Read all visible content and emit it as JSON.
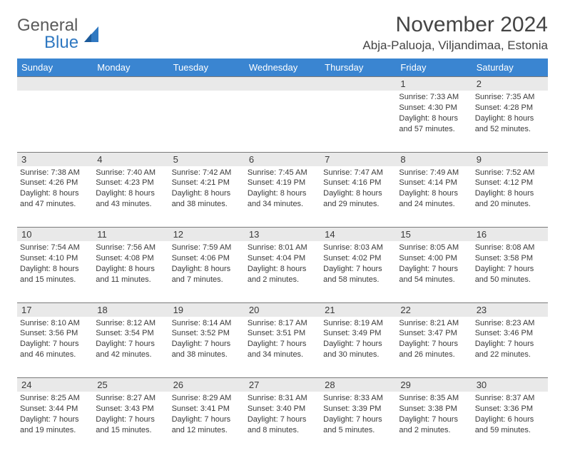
{
  "brand": {
    "name1": "General",
    "name2": "Blue"
  },
  "title": "November 2024",
  "location": "Abja-Paluoja, Viljandimaa, Estonia",
  "colors": {
    "header_bg": "#3a85d1",
    "header_text": "#ffffff",
    "daynum_bg": "#e9e9e9",
    "daynum_border": "#7a7a7a",
    "text": "#3a3a3a",
    "brand_gray": "#5a5a5a",
    "brand_blue": "#2f78c1",
    "page_bg": "#ffffff"
  },
  "weekdays": [
    "Sunday",
    "Monday",
    "Tuesday",
    "Wednesday",
    "Thursday",
    "Friday",
    "Saturday"
  ],
  "weeks": [
    [
      null,
      null,
      null,
      null,
      null,
      {
        "n": "1",
        "sr": "Sunrise: 7:33 AM",
        "ss": "Sunset: 4:30 PM",
        "dl1": "Daylight: 8 hours",
        "dl2": "and 57 minutes."
      },
      {
        "n": "2",
        "sr": "Sunrise: 7:35 AM",
        "ss": "Sunset: 4:28 PM",
        "dl1": "Daylight: 8 hours",
        "dl2": "and 52 minutes."
      }
    ],
    [
      {
        "n": "3",
        "sr": "Sunrise: 7:38 AM",
        "ss": "Sunset: 4:26 PM",
        "dl1": "Daylight: 8 hours",
        "dl2": "and 47 minutes."
      },
      {
        "n": "4",
        "sr": "Sunrise: 7:40 AM",
        "ss": "Sunset: 4:23 PM",
        "dl1": "Daylight: 8 hours",
        "dl2": "and 43 minutes."
      },
      {
        "n": "5",
        "sr": "Sunrise: 7:42 AM",
        "ss": "Sunset: 4:21 PM",
        "dl1": "Daylight: 8 hours",
        "dl2": "and 38 minutes."
      },
      {
        "n": "6",
        "sr": "Sunrise: 7:45 AM",
        "ss": "Sunset: 4:19 PM",
        "dl1": "Daylight: 8 hours",
        "dl2": "and 34 minutes."
      },
      {
        "n": "7",
        "sr": "Sunrise: 7:47 AM",
        "ss": "Sunset: 4:16 PM",
        "dl1": "Daylight: 8 hours",
        "dl2": "and 29 minutes."
      },
      {
        "n": "8",
        "sr": "Sunrise: 7:49 AM",
        "ss": "Sunset: 4:14 PM",
        "dl1": "Daylight: 8 hours",
        "dl2": "and 24 minutes."
      },
      {
        "n": "9",
        "sr": "Sunrise: 7:52 AM",
        "ss": "Sunset: 4:12 PM",
        "dl1": "Daylight: 8 hours",
        "dl2": "and 20 minutes."
      }
    ],
    [
      {
        "n": "10",
        "sr": "Sunrise: 7:54 AM",
        "ss": "Sunset: 4:10 PM",
        "dl1": "Daylight: 8 hours",
        "dl2": "and 15 minutes."
      },
      {
        "n": "11",
        "sr": "Sunrise: 7:56 AM",
        "ss": "Sunset: 4:08 PM",
        "dl1": "Daylight: 8 hours",
        "dl2": "and 11 minutes."
      },
      {
        "n": "12",
        "sr": "Sunrise: 7:59 AM",
        "ss": "Sunset: 4:06 PM",
        "dl1": "Daylight: 8 hours",
        "dl2": "and 7 minutes."
      },
      {
        "n": "13",
        "sr": "Sunrise: 8:01 AM",
        "ss": "Sunset: 4:04 PM",
        "dl1": "Daylight: 8 hours",
        "dl2": "and 2 minutes."
      },
      {
        "n": "14",
        "sr": "Sunrise: 8:03 AM",
        "ss": "Sunset: 4:02 PM",
        "dl1": "Daylight: 7 hours",
        "dl2": "and 58 minutes."
      },
      {
        "n": "15",
        "sr": "Sunrise: 8:05 AM",
        "ss": "Sunset: 4:00 PM",
        "dl1": "Daylight: 7 hours",
        "dl2": "and 54 minutes."
      },
      {
        "n": "16",
        "sr": "Sunrise: 8:08 AM",
        "ss": "Sunset: 3:58 PM",
        "dl1": "Daylight: 7 hours",
        "dl2": "and 50 minutes."
      }
    ],
    [
      {
        "n": "17",
        "sr": "Sunrise: 8:10 AM",
        "ss": "Sunset: 3:56 PM",
        "dl1": "Daylight: 7 hours",
        "dl2": "and 46 minutes."
      },
      {
        "n": "18",
        "sr": "Sunrise: 8:12 AM",
        "ss": "Sunset: 3:54 PM",
        "dl1": "Daylight: 7 hours",
        "dl2": "and 42 minutes."
      },
      {
        "n": "19",
        "sr": "Sunrise: 8:14 AM",
        "ss": "Sunset: 3:52 PM",
        "dl1": "Daylight: 7 hours",
        "dl2": "and 38 minutes."
      },
      {
        "n": "20",
        "sr": "Sunrise: 8:17 AM",
        "ss": "Sunset: 3:51 PM",
        "dl1": "Daylight: 7 hours",
        "dl2": "and 34 minutes."
      },
      {
        "n": "21",
        "sr": "Sunrise: 8:19 AM",
        "ss": "Sunset: 3:49 PM",
        "dl1": "Daylight: 7 hours",
        "dl2": "and 30 minutes."
      },
      {
        "n": "22",
        "sr": "Sunrise: 8:21 AM",
        "ss": "Sunset: 3:47 PM",
        "dl1": "Daylight: 7 hours",
        "dl2": "and 26 minutes."
      },
      {
        "n": "23",
        "sr": "Sunrise: 8:23 AM",
        "ss": "Sunset: 3:46 PM",
        "dl1": "Daylight: 7 hours",
        "dl2": "and 22 minutes."
      }
    ],
    [
      {
        "n": "24",
        "sr": "Sunrise: 8:25 AM",
        "ss": "Sunset: 3:44 PM",
        "dl1": "Daylight: 7 hours",
        "dl2": "and 19 minutes."
      },
      {
        "n": "25",
        "sr": "Sunrise: 8:27 AM",
        "ss": "Sunset: 3:43 PM",
        "dl1": "Daylight: 7 hours",
        "dl2": "and 15 minutes."
      },
      {
        "n": "26",
        "sr": "Sunrise: 8:29 AM",
        "ss": "Sunset: 3:41 PM",
        "dl1": "Daylight: 7 hours",
        "dl2": "and 12 minutes."
      },
      {
        "n": "27",
        "sr": "Sunrise: 8:31 AM",
        "ss": "Sunset: 3:40 PM",
        "dl1": "Daylight: 7 hours",
        "dl2": "and 8 minutes."
      },
      {
        "n": "28",
        "sr": "Sunrise: 8:33 AM",
        "ss": "Sunset: 3:39 PM",
        "dl1": "Daylight: 7 hours",
        "dl2": "and 5 minutes."
      },
      {
        "n": "29",
        "sr": "Sunrise: 8:35 AM",
        "ss": "Sunset: 3:38 PM",
        "dl1": "Daylight: 7 hours",
        "dl2": "and 2 minutes."
      },
      {
        "n": "30",
        "sr": "Sunrise: 8:37 AM",
        "ss": "Sunset: 3:36 PM",
        "dl1": "Daylight: 6 hours",
        "dl2": "and 59 minutes."
      }
    ]
  ]
}
